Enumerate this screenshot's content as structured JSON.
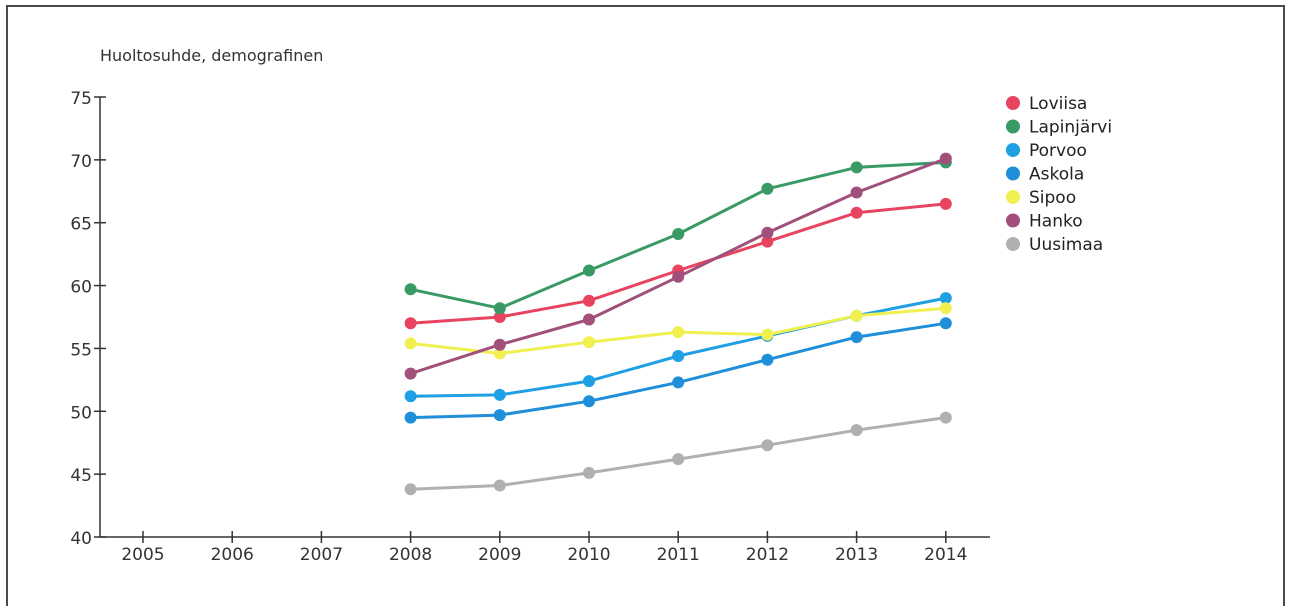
{
  "chart_data": {
    "type": "line",
    "title": "Huoltosuhde, demografinen",
    "xlabel": "",
    "ylabel": "",
    "x": [
      "2005",
      "2006",
      "2007",
      "2008",
      "2009",
      "2010",
      "2011",
      "2012",
      "2013",
      "2014"
    ],
    "ylim": [
      40,
      75
    ],
    "yticks": [
      40,
      45,
      50,
      55,
      60,
      65,
      70,
      75
    ],
    "grid": false,
    "legend_position": "right",
    "series": [
      {
        "name": "Loviisa",
        "color": "#e8445f",
        "values": [
          null,
          null,
          null,
          57.0,
          57.5,
          58.8,
          61.2,
          63.5,
          65.8,
          66.5
        ]
      },
      {
        "name": "Lapinjärvi",
        "color": "#3a9a65",
        "values": [
          null,
          null,
          null,
          59.7,
          58.2,
          61.2,
          64.1,
          67.7,
          69.4,
          69.8
        ]
      },
      {
        "name": "Porvoo",
        "color": "#1fa0e4",
        "values": [
          null,
          null,
          null,
          51.2,
          51.3,
          52.4,
          54.4,
          56.0,
          57.6,
          59.0
        ]
      },
      {
        "name": "Askola",
        "color": "#1e8fd8",
        "values": [
          null,
          null,
          null,
          49.5,
          49.7,
          50.8,
          52.3,
          54.1,
          55.9,
          57.0
        ]
      },
      {
        "name": "Sipoo",
        "color": "#f0f050",
        "values": [
          null,
          null,
          null,
          55.4,
          54.6,
          55.5,
          56.3,
          56.1,
          57.6,
          58.2
        ]
      },
      {
        "name": "Hanko",
        "color": "#a0507a",
        "values": [
          null,
          null,
          null,
          53.0,
          55.3,
          57.3,
          60.7,
          64.2,
          67.4,
          70.1
        ]
      },
      {
        "name": "Uusimaa",
        "color": "#b0b0b0",
        "values": [
          null,
          null,
          null,
          43.8,
          44.1,
          45.1,
          46.2,
          47.3,
          48.5,
          49.5
        ]
      }
    ]
  }
}
